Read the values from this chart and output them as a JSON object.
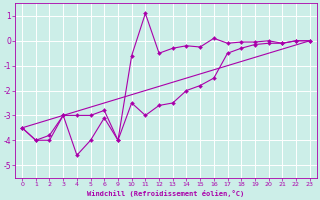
{
  "bg_color": "#cceee8",
  "grid_color": "#ffffff",
  "line_color": "#aa00aa",
  "marker_color": "#aa00aa",
  "xlabel": "Windchill (Refroidissement éolien,°C)",
  "ylim": [
    -5.5,
    1.5
  ],
  "yticks": [
    -5,
    -4,
    -3,
    -2,
    -1,
    0,
    1
  ],
  "xtick_labels": [
    "0",
    "1",
    "2",
    "3",
    "4",
    "5",
    "6",
    "9",
    "10",
    "11",
    "12",
    "13",
    "14",
    "15",
    "16",
    "17",
    "18",
    "19",
    "20",
    "21",
    "22",
    "23"
  ],
  "series1_y": [
    -3.5,
    -4.0,
    -3.8,
    -3.0,
    -4.6,
    -4.0,
    -3.1,
    -4.0,
    -0.6,
    1.1,
    -0.5,
    -0.3,
    -0.2,
    -0.25,
    0.1,
    -0.1,
    -0.05,
    -0.05,
    0.0,
    -0.1,
    0.0,
    0.0
  ],
  "series2_y": [
    -3.5,
    -4.0,
    -4.0,
    -3.0,
    -3.0,
    -3.0,
    -2.8,
    -4.0,
    -2.5,
    -3.0,
    -2.6,
    -2.5,
    -2.0,
    -1.8,
    -1.5,
    -0.5,
    -0.3,
    -0.15,
    -0.1,
    -0.1,
    0.0,
    0.0
  ],
  "series3_indices": [
    0,
    21
  ],
  "series3_y": [
    -3.5,
    0.0
  ],
  "figsize": [
    3.2,
    2.0
  ],
  "dpi": 100
}
